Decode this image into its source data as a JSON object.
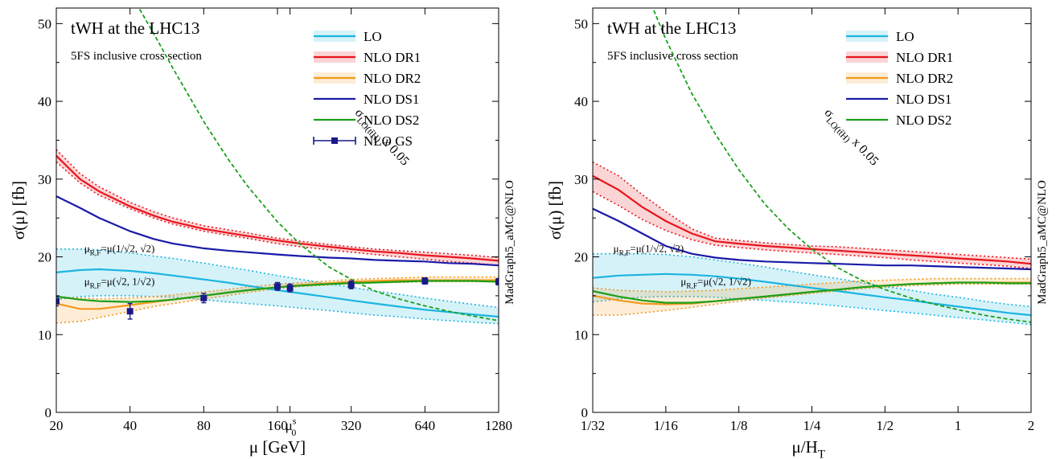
{
  "chart_data": [
    {
      "type": "line",
      "title": "tWH   at the LHC13",
      "subtitle": "5FS  inclusive cross section",
      "ylabel": "σ(μ)   [fb]",
      "xlabel": "μ   [GeV]",
      "x_scale": "log2",
      "x_ticks": [
        20,
        40,
        80,
        160,
        320,
        640,
        1280
      ],
      "x_tick_labels": [
        "20",
        "40",
        "80",
        "160",
        "320",
        "640",
        "1280"
      ],
      "mu0_marker": {
        "x": 180,
        "label": "μ",
        "sub": "0",
        "sup": "s"
      },
      "ylim": [
        0,
        52
      ],
      "y_ticks": [
        0,
        10,
        20,
        30,
        40,
        50
      ],
      "y_tick_labels": [
        "0",
        "10",
        "20",
        "30",
        "40",
        "50"
      ],
      "side_label": "MadGraph5_aMC@NLO",
      "curve_annotation": {
        "x": 330,
        "y": 38.5,
        "label": "σ",
        "sub": "LO(tt̄H)",
        "suffix": " x 0.05"
      },
      "scale_annotations": [
        {
          "x": 26,
          "y": 20.6,
          "label": "μ",
          "sub": "R,F",
          "suffix": "=μ(1/√2, √2)"
        },
        {
          "x": 26,
          "y": 16.4,
          "label": "μ",
          "sub": "R,F",
          "suffix": "=μ(√2, 1/√2)"
        }
      ],
      "legend": [
        "LO",
        "NLO  DR1",
        "NLO  DR2",
        "NLO  DS1",
        "NLO  DS2",
        "NLO  GS"
      ],
      "series": [
        {
          "name": "LO",
          "color": "#1bb5e0",
          "x": [
            20,
            25,
            30,
            40,
            50,
            60,
            80,
            100,
            120,
            160,
            200,
            260,
            320,
            400,
            500,
            640,
            800,
            1000,
            1280
          ],
          "y": [
            18.0,
            18.3,
            18.4,
            18.2,
            17.9,
            17.6,
            17.1,
            16.7,
            16.3,
            15.7,
            15.3,
            14.8,
            14.4,
            14.0,
            13.6,
            13.2,
            12.9,
            12.6,
            12.3
          ],
          "band_low": [
            14.5,
            14.9,
            15.0,
            15.0,
            14.9,
            14.8,
            14.5,
            14.2,
            14.0,
            13.7,
            13.4,
            13.1,
            12.8,
            12.5,
            12.3,
            12.0,
            11.8,
            11.6,
            11.4
          ],
          "band_high": [
            21.0,
            21.0,
            20.9,
            20.5,
            20.1,
            19.8,
            19.2,
            18.7,
            18.3,
            17.6,
            17.1,
            16.5,
            16.1,
            15.6,
            15.2,
            14.7,
            14.3,
            13.9,
            13.5
          ]
        },
        {
          "name": "NLO  DR1",
          "color": "#e8141c",
          "x": [
            20,
            25,
            30,
            40,
            50,
            60,
            80,
            100,
            120,
            160,
            200,
            260,
            320,
            400,
            500,
            640,
            800,
            1000,
            1280
          ],
          "y": [
            33.0,
            30.0,
            28.4,
            26.5,
            25.3,
            24.5,
            23.6,
            23.1,
            22.7,
            22.1,
            21.7,
            21.3,
            21.0,
            20.7,
            20.5,
            20.2,
            20.0,
            19.8,
            19.5
          ],
          "band_low": [
            32.2,
            29.5,
            27.9,
            26.2,
            25.0,
            24.2,
            23.3,
            22.8,
            22.4,
            21.7,
            21.3,
            20.9,
            20.6,
            20.3,
            20.0,
            19.7,
            19.4,
            19.2,
            18.9
          ],
          "band_high": [
            33.8,
            30.7,
            29.0,
            27.0,
            25.8,
            25.0,
            24.0,
            23.5,
            23.1,
            22.4,
            22.0,
            21.6,
            21.3,
            21.0,
            20.8,
            20.6,
            20.4,
            20.2,
            19.9
          ]
        },
        {
          "name": "NLO  DR2",
          "color": "#f39a1e",
          "x": [
            20,
            25,
            30,
            40,
            50,
            60,
            80,
            100,
            120,
            160,
            200,
            260,
            320,
            400,
            500,
            640,
            800,
            1000,
            1280
          ],
          "y": [
            14.0,
            13.3,
            13.3,
            13.8,
            14.2,
            14.5,
            15.0,
            15.4,
            15.7,
            16.1,
            16.4,
            16.6,
            16.8,
            16.9,
            17.0,
            17.0,
            17.0,
            17.0,
            17.0
          ],
          "band_low": [
            11.5,
            11.7,
            12.2,
            13.0,
            13.6,
            14.0,
            14.6,
            15.0,
            15.4,
            15.9,
            16.2,
            16.4,
            16.6,
            16.7,
            16.7,
            16.8,
            16.8,
            16.8,
            16.8
          ],
          "band_high": [
            14.9,
            14.7,
            14.6,
            14.7,
            14.9,
            15.1,
            15.5,
            15.8,
            16.1,
            16.5,
            16.7,
            16.9,
            17.1,
            17.2,
            17.3,
            17.4,
            17.4,
            17.4,
            17.4
          ]
        },
        {
          "name": "NLO  DS1",
          "color": "#1a1aa8",
          "x": [
            20,
            25,
            30,
            40,
            50,
            60,
            80,
            100,
            120,
            160,
            200,
            260,
            320,
            400,
            500,
            640,
            800,
            1000,
            1280
          ],
          "y": [
            27.8,
            26.3,
            25.0,
            23.3,
            22.3,
            21.7,
            21.1,
            20.8,
            20.6,
            20.3,
            20.1,
            19.9,
            19.8,
            19.6,
            19.5,
            19.4,
            19.2,
            19.1,
            18.9
          ],
          "band_low": null,
          "band_high": null
        },
        {
          "name": "NLO  DS2",
          "color": "#1aa01a",
          "x": [
            20,
            25,
            30,
            40,
            50,
            60,
            80,
            100,
            120,
            160,
            200,
            260,
            320,
            400,
            500,
            640,
            800,
            1000,
            1280
          ],
          "y": [
            14.9,
            14.5,
            14.3,
            14.2,
            14.3,
            14.5,
            15.0,
            15.4,
            15.7,
            16.1,
            16.3,
            16.5,
            16.6,
            16.7,
            16.8,
            16.9,
            16.9,
            16.9,
            16.8
          ],
          "band_low": null,
          "band_high": null
        },
        {
          "name": "NLO  GS",
          "color": "#1a1a8a",
          "markers": true,
          "x": [
            20,
            40,
            80,
            160,
            180,
            320,
            640,
            1280
          ],
          "y": [
            14.3,
            13.0,
            14.7,
            16.2,
            16.0,
            16.4,
            16.9,
            16.8
          ],
          "err": [
            0.6,
            1.0,
            0.6,
            0.5,
            0.5,
            0.5,
            0.4,
            0.4
          ]
        },
        {
          "name": "σLO(tt̄H) x 0.05",
          "color": "#1aa01a",
          "dashed": true,
          "x": [
            40,
            50,
            60,
            80,
            100,
            120,
            160,
            200,
            260,
            320,
            400,
            500,
            640,
            800,
            1000,
            1280
          ],
          "y": [
            54.0,
            48.7,
            44.2,
            37.4,
            32.7,
            29.2,
            24.5,
            21.5,
            18.7,
            17.1,
            15.6,
            14.6,
            13.7,
            13.0,
            12.4,
            11.8
          ]
        }
      ]
    },
    {
      "type": "line",
      "title": "tWH   at the LHC13",
      "subtitle": "5FS  inclusive cross section",
      "ylabel": "σ(μ)   [fb]",
      "xlabel": "μ/H",
      "xlabel_sub": "T",
      "x_scale": "log2",
      "x_ticks": [
        0.03125,
        0.0625,
        0.125,
        0.25,
        0.5,
        1,
        2
      ],
      "x_tick_labels": [
        "1/32",
        "1/16",
        "1/8",
        "1/4",
        "1/2",
        "1",
        "2"
      ],
      "ylim": [
        0,
        52
      ],
      "y_ticks": [
        0,
        10,
        20,
        30,
        40,
        50
      ],
      "y_tick_labels": [
        "0",
        "10",
        "20",
        "30",
        "40",
        "50"
      ],
      "side_label": "MadGraph5_aMC@NLO",
      "curve_annotation": {
        "x": 0.28,
        "y": 38.5,
        "label": "σ",
        "sub": "LO(tt̄H)",
        "suffix": " x 0.05"
      },
      "scale_annotations": [
        {
          "x": 0.038,
          "y": 20.6,
          "label": "μ",
          "sub": "R,F",
          "suffix": "=μ(1/√2, √2)"
        },
        {
          "x": 0.072,
          "y": 16.4,
          "label": "μ",
          "sub": "R,F",
          "suffix": "=μ(√2, 1/√2)"
        }
      ],
      "legend": [
        "LO",
        "NLO  DR1",
        "NLO  DR2",
        "NLO  DS1",
        "NLO  DS2"
      ],
      "series": [
        {
          "name": "LO",
          "color": "#1bb5e0",
          "x": [
            0.03125,
            0.04,
            0.05,
            0.0625,
            0.08,
            0.1,
            0.125,
            0.16,
            0.2,
            0.25,
            0.32,
            0.4,
            0.5,
            0.64,
            0.8,
            1,
            1.28,
            1.6,
            2
          ],
          "y": [
            17.3,
            17.6,
            17.7,
            17.8,
            17.7,
            17.5,
            17.2,
            16.8,
            16.4,
            16.0,
            15.6,
            15.2,
            14.8,
            14.4,
            14.0,
            13.6,
            13.2,
            12.8,
            12.5
          ],
          "band_low": [
            14.2,
            14.6,
            14.8,
            14.9,
            14.9,
            14.8,
            14.6,
            14.4,
            14.2,
            14.0,
            13.7,
            13.4,
            13.1,
            12.8,
            12.5,
            12.2,
            11.9,
            11.6,
            11.3
          ],
          "band_high": [
            20.4,
            20.4,
            20.4,
            20.3,
            20.0,
            19.6,
            19.2,
            18.7,
            18.2,
            17.7,
            17.2,
            16.7,
            16.2,
            15.7,
            15.2,
            14.8,
            14.3,
            13.9,
            13.6
          ]
        },
        {
          "name": "NLO  DR1",
          "color": "#e8141c",
          "x": [
            0.03125,
            0.04,
            0.05,
            0.0625,
            0.08,
            0.1,
            0.125,
            0.16,
            0.2,
            0.25,
            0.32,
            0.4,
            0.5,
            0.64,
            0.8,
            1,
            1.28,
            1.6,
            2
          ],
          "y": [
            30.4,
            28.6,
            26.4,
            24.6,
            23.0,
            22.0,
            21.7,
            21.4,
            21.2,
            21.0,
            20.8,
            20.6,
            20.4,
            20.2,
            20.0,
            19.8,
            19.6,
            19.4,
            19.1
          ],
          "band_low": [
            28.4,
            26.6,
            24.8,
            23.4,
            22.2,
            21.5,
            21.2,
            20.9,
            20.7,
            20.5,
            20.3,
            20.1,
            19.9,
            19.6,
            19.4,
            19.2,
            19.0,
            18.8,
            18.5
          ],
          "band_high": [
            32.2,
            30.4,
            28.0,
            25.8,
            23.6,
            22.4,
            22.1,
            21.8,
            21.6,
            21.4,
            21.3,
            21.1,
            20.9,
            20.7,
            20.5,
            20.3,
            20.1,
            19.9,
            19.7
          ]
        },
        {
          "name": "NLO  DR2",
          "color": "#f39a1e",
          "x": [
            0.03125,
            0.04,
            0.05,
            0.0625,
            0.08,
            0.1,
            0.125,
            0.16,
            0.2,
            0.25,
            0.32,
            0.4,
            0.5,
            0.64,
            0.8,
            1,
            1.28,
            1.6,
            2
          ],
          "y": [
            15.0,
            14.4,
            14.0,
            13.9,
            14.0,
            14.3,
            14.6,
            14.9,
            15.2,
            15.5,
            15.8,
            16.1,
            16.3,
            16.5,
            16.6,
            16.7,
            16.7,
            16.7,
            16.7
          ],
          "band_low": [
            12.5,
            12.5,
            12.8,
            13.1,
            13.5,
            13.9,
            14.3,
            14.7,
            15.0,
            15.3,
            15.6,
            15.9,
            16.1,
            16.3,
            16.4,
            16.5,
            16.5,
            16.5,
            16.5
          ],
          "band_high": [
            16.0,
            15.7,
            15.6,
            15.5,
            15.6,
            15.7,
            15.9,
            16.1,
            16.3,
            16.5,
            16.7,
            16.9,
            17.0,
            17.1,
            17.2,
            17.2,
            17.2,
            17.2,
            17.2
          ]
        },
        {
          "name": "NLO  DS1",
          "color": "#1a1aa8",
          "x": [
            0.03125,
            0.04,
            0.05,
            0.0625,
            0.08,
            0.1,
            0.125,
            0.16,
            0.2,
            0.25,
            0.32,
            0.4,
            0.5,
            0.64,
            0.8,
            1,
            1.28,
            1.6,
            2
          ],
          "y": [
            26.2,
            24.6,
            23.0,
            21.4,
            20.4,
            19.9,
            19.6,
            19.4,
            19.3,
            19.2,
            19.1,
            19.0,
            18.9,
            18.9,
            18.8,
            18.7,
            18.6,
            18.5,
            18.4
          ],
          "band_low": null,
          "band_high": null
        },
        {
          "name": "NLO  DS2",
          "color": "#1aa01a",
          "x": [
            0.03125,
            0.04,
            0.05,
            0.0625,
            0.08,
            0.1,
            0.125,
            0.16,
            0.2,
            0.25,
            0.32,
            0.4,
            0.5,
            0.64,
            0.8,
            1,
            1.28,
            1.6,
            2
          ],
          "y": [
            15.6,
            14.9,
            14.4,
            14.1,
            14.1,
            14.3,
            14.6,
            14.9,
            15.2,
            15.5,
            15.8,
            16.1,
            16.3,
            16.5,
            16.6,
            16.7,
            16.7,
            16.6,
            16.6
          ],
          "band_low": null,
          "band_high": null
        },
        {
          "name": "σLO(tt̄H) x 0.05",
          "color": "#1aa01a",
          "dashed": true,
          "x": [
            0.052,
            0.0625,
            0.08,
            0.1,
            0.125,
            0.16,
            0.2,
            0.25,
            0.32,
            0.4,
            0.5,
            0.64,
            0.8,
            1,
            1.28,
            1.6,
            2
          ],
          "y": [
            54.0,
            48.0,
            41.0,
            35.8,
            31.2,
            26.8,
            23.6,
            21.0,
            18.6,
            17.0,
            15.8,
            14.7,
            13.9,
            13.2,
            12.5,
            12.0,
            11.6
          ]
        }
      ]
    }
  ]
}
